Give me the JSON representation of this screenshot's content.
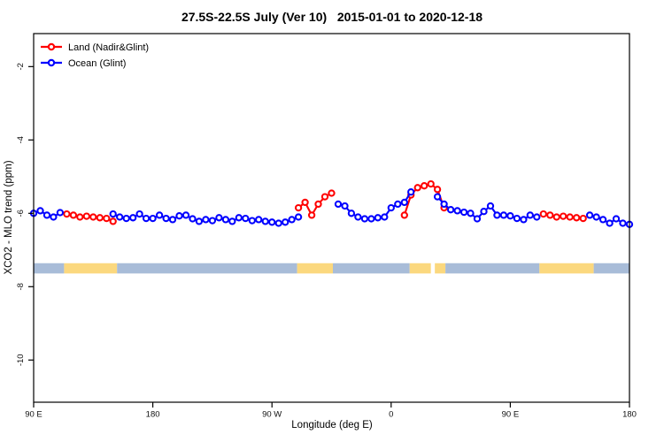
{
  "chart": {
    "title": "27.5S-22.5S July (Ver 10)   2015-01-01 to 2020-12-18",
    "xlabel": "Longitude (deg E)",
    "ylabel": "XCO2 - MLO trend (ppm)"
  },
  "chart_data": {
    "type": "line",
    "title": "27.5S-22.5S July (Ver 10)   2015-01-01 to 2020-12-18",
    "xlabel": "Longitude (deg E)",
    "ylabel": "XCO2 - MLO trend (ppm)",
    "x_axis": {
      "range_deg_east": [
        90,
        540
      ],
      "ticks": [
        {
          "lon": 90,
          "label": "90 E"
        },
        {
          "lon": 180,
          "label": "180"
        },
        {
          "lon": 270,
          "label": "90 W"
        },
        {
          "lon": 360,
          "label": "0"
        },
        {
          "lon": 450,
          "label": "90 E"
        },
        {
          "lon": 540,
          "label": "180"
        }
      ]
    },
    "y_axis": {
      "range": [
        -11.15,
        -1.1
      ],
      "ticks": [
        {
          "v": -2,
          "label": "-2"
        },
        {
          "v": -4,
          "label": "-4"
        },
        {
          "v": -6,
          "label": "-6"
        },
        {
          "v": -8,
          "label": "-8"
        },
        {
          "v": -10,
          "label": "-10"
        }
      ],
      "grid": false
    },
    "legend": [
      {
        "name": "Land (Nadir&Glint)",
        "color": "#FF0000"
      },
      {
        "name": "Ocean (Glint)",
        "color": "#0000FF"
      }
    ],
    "marker": "open-circle",
    "series": [
      {
        "name": "Land (Nadir&Glint)",
        "color": "#FF0000",
        "segments": [
          [
            [
              115,
              -6.02
            ],
            [
              120,
              -6.05
            ],
            [
              125,
              -6.1
            ],
            [
              130,
              -6.08
            ],
            [
              135,
              -6.1
            ],
            [
              140,
              -6.12
            ],
            [
              145,
              -6.14
            ],
            [
              150,
              -6.22
            ]
          ],
          [
            [
              290,
              -5.85
            ],
            [
              295,
              -5.7
            ],
            [
              300,
              -6.05
            ],
            [
              305,
              -5.75
            ],
            [
              310,
              -5.55
            ],
            [
              315,
              -5.45
            ]
          ],
          [
            [
              370,
              -6.05
            ],
            [
              375,
              -5.5
            ],
            [
              380,
              -5.3
            ],
            [
              385,
              -5.25
            ],
            [
              390,
              -5.2
            ],
            [
              395,
              -5.35
            ],
            [
              400,
              -5.85
            ]
          ],
          [
            [
              475,
              -6.02
            ],
            [
              480,
              -6.05
            ],
            [
              485,
              -6.1
            ],
            [
              490,
              -6.08
            ],
            [
              495,
              -6.1
            ],
            [
              500,
              -6.12
            ],
            [
              505,
              -6.14
            ]
          ]
        ]
      },
      {
        "name": "Ocean (Glint)",
        "color": "#0000FF",
        "segments": [
          [
            [
              90,
              -6.0
            ],
            [
              95,
              -5.93
            ],
            [
              100,
              -6.05
            ],
            [
              105,
              -6.1
            ],
            [
              110,
              -5.98
            ]
          ],
          [
            [
              150,
              -6.02
            ],
            [
              155,
              -6.1
            ],
            [
              160,
              -6.14
            ],
            [
              165,
              -6.12
            ],
            [
              170,
              -6.02
            ],
            [
              175,
              -6.14
            ],
            [
              180,
              -6.14
            ],
            [
              185,
              -6.05
            ],
            [
              190,
              -6.14
            ],
            [
              195,
              -6.17
            ],
            [
              200,
              -6.07
            ],
            [
              205,
              -6.05
            ],
            [
              210,
              -6.15
            ],
            [
              215,
              -6.22
            ],
            [
              220,
              -6.17
            ],
            [
              225,
              -6.2
            ],
            [
              230,
              -6.12
            ],
            [
              235,
              -6.17
            ],
            [
              240,
              -6.22
            ],
            [
              245,
              -6.12
            ],
            [
              250,
              -6.14
            ],
            [
              255,
              -6.2
            ],
            [
              260,
              -6.17
            ],
            [
              265,
              -6.22
            ],
            [
              270,
              -6.24
            ],
            [
              275,
              -6.27
            ],
            [
              280,
              -6.24
            ],
            [
              285,
              -6.17
            ],
            [
              290,
              -6.1
            ]
          ],
          [
            [
              320,
              -5.75
            ],
            [
              325,
              -5.8
            ],
            [
              330,
              -6.0
            ],
            [
              335,
              -6.1
            ],
            [
              340,
              -6.15
            ],
            [
              345,
              -6.15
            ],
            [
              350,
              -6.12
            ],
            [
              355,
              -6.1
            ],
            [
              360,
              -5.85
            ],
            [
              365,
              -5.75
            ],
            [
              370,
              -5.7
            ],
            [
              375,
              -5.42
            ]
          ],
          [
            [
              395,
              -5.55
            ],
            [
              400,
              -5.75
            ],
            [
              405,
              -5.9
            ],
            [
              410,
              -5.93
            ],
            [
              415,
              -5.97
            ],
            [
              420,
              -6.0
            ],
            [
              425,
              -6.15
            ],
            [
              430,
              -5.95
            ],
            [
              435,
              -5.8
            ],
            [
              440,
              -6.05
            ],
            [
              445,
              -6.05
            ],
            [
              450,
              -6.07
            ],
            [
              455,
              -6.14
            ],
            [
              460,
              -6.17
            ],
            [
              465,
              -6.05
            ],
            [
              470,
              -6.1
            ]
          ],
          [
            [
              510,
              -6.05
            ],
            [
              515,
              -6.1
            ],
            [
              520,
              -6.17
            ],
            [
              525,
              -6.27
            ],
            [
              530,
              -6.15
            ],
            [
              535,
              -6.27
            ],
            [
              540,
              -6.3
            ]
          ]
        ]
      }
    ],
    "land_ocean_band": {
      "y_top": -7.36,
      "y_bottom": -7.64,
      "ocean_color": "#A8BCD8",
      "land_color": "#FBD87E",
      "segments": [
        {
          "from": 90,
          "to": 113,
          "type": "ocean"
        },
        {
          "from": 113,
          "to": 153,
          "type": "land"
        },
        {
          "from": 153,
          "to": 289,
          "type": "ocean"
        },
        {
          "from": 289,
          "to": 316,
          "type": "land"
        },
        {
          "from": 316,
          "to": 374,
          "type": "ocean"
        },
        {
          "from": 374,
          "to": 390,
          "type": "land"
        },
        {
          "from": 390,
          "to": 393,
          "type": "gap"
        },
        {
          "from": 393,
          "to": 401,
          "type": "land"
        },
        {
          "from": 401,
          "to": 472,
          "type": "ocean"
        },
        {
          "from": 472,
          "to": 513,
          "type": "land"
        },
        {
          "from": 513,
          "to": 540,
          "type": "ocean"
        }
      ]
    }
  }
}
